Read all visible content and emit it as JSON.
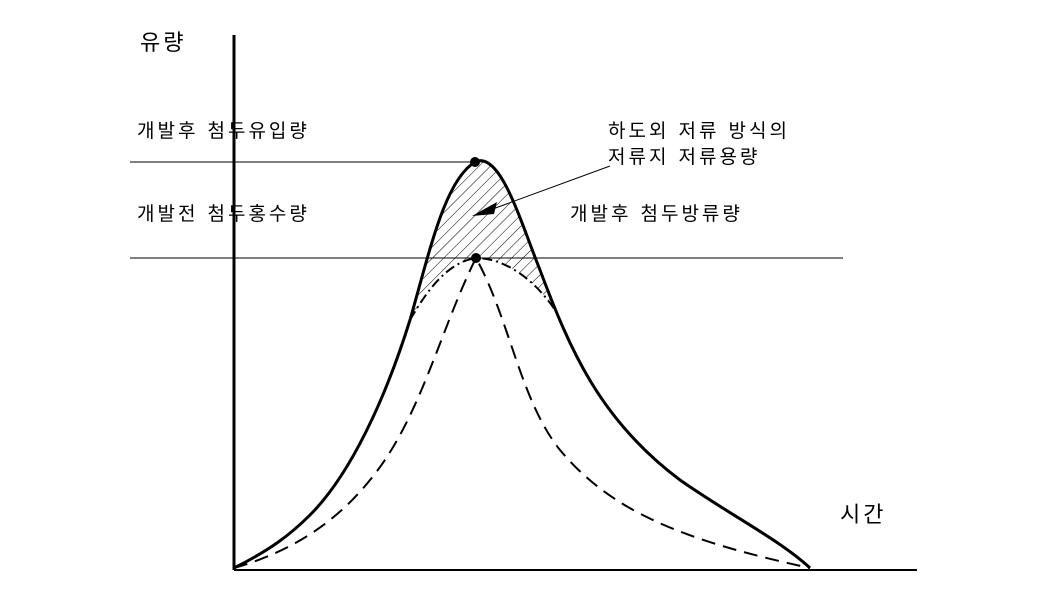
{
  "axis": {
    "y_label": "유량",
    "x_label": "시간"
  },
  "labels": {
    "peak_inflow_after": "개발후 첨두유입량",
    "peak_flood_before": "개발전 첨두홍수량",
    "storage_line1": "하도외 저류 방식의",
    "storage_line2": "저류지 저류용량",
    "peak_outflow_after": "개발후 첨두방류량"
  }
}
